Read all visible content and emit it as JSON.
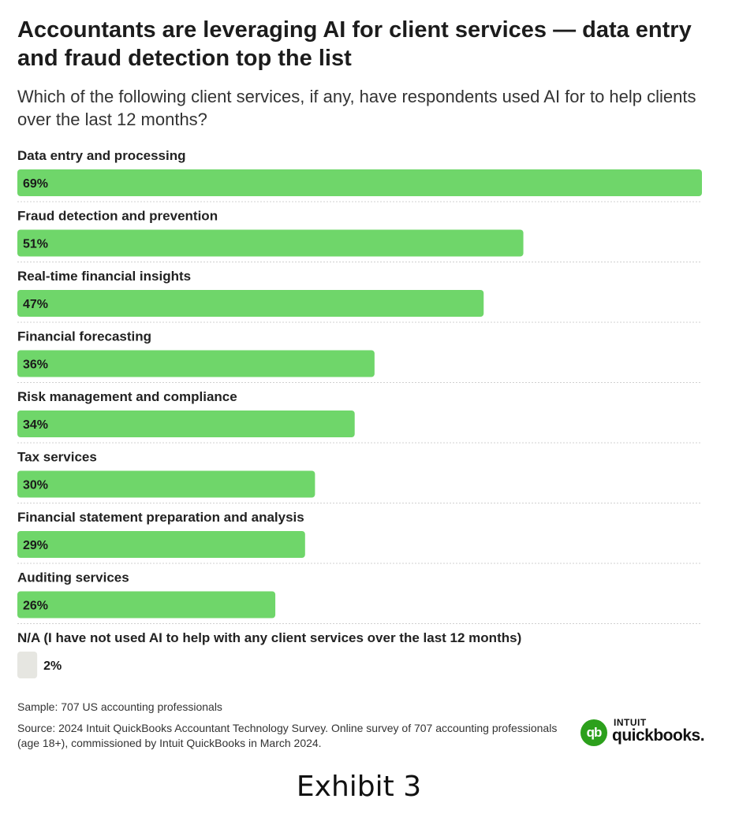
{
  "title": "Accountants are leveraging AI for client services — data entry and fraud detection top the list",
  "subtitle": "Which of the following client services, if any, have respondents used AI for to help clients over the last 12 months?",
  "chart_data": {
    "type": "bar",
    "orientation": "horizontal",
    "categories": [
      "Data entry and processing",
      "Fraud detection and prevention",
      "Real-time financial insights",
      "Financial forecasting",
      "Risk management and compliance",
      "Tax services",
      "Financial statement preparation and analysis",
      "Auditing services",
      "N/A (I have not used AI to help with any client services over the last 12 months)"
    ],
    "values": [
      69,
      51,
      47,
      36,
      34,
      30,
      29,
      26,
      2
    ],
    "value_labels": [
      "69%",
      "51%",
      "47%",
      "36%",
      "34%",
      "30%",
      "29%",
      "26%",
      "2%"
    ],
    "unit": "%",
    "xlim": [
      0,
      69
    ],
    "bar_color": "#6fd66a",
    "na_bar_color": "#e6e6e1",
    "grid": false
  },
  "footer": {
    "sample": "Sample: 707 US accounting professionals",
    "source": "Source: 2024 Intuit QuickBooks Accountant Technology Survey. Online survey of 707 accounting professionals (age 18+), commissioned by Intuit QuickBooks in March 2024."
  },
  "logo": {
    "mark": "qb",
    "top": "INTUIT",
    "bottom": "quickbooks."
  },
  "exhibit_label": "Exhibit 3"
}
